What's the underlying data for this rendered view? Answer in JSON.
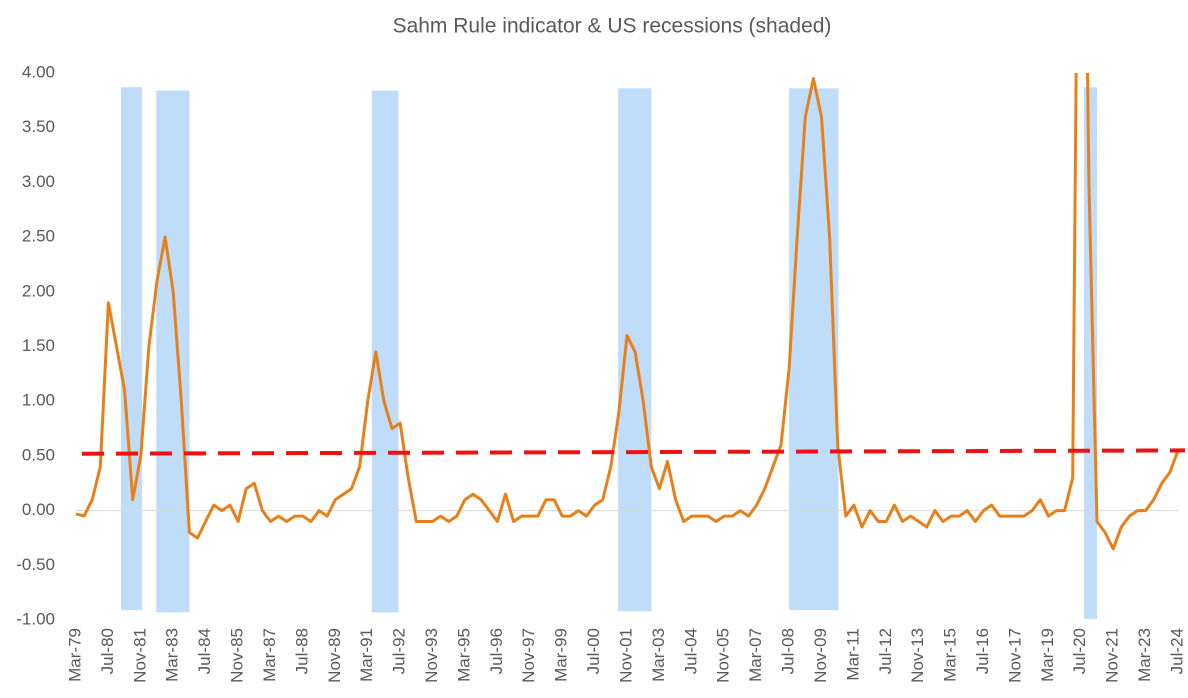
{
  "chart_data": {
    "type": "line",
    "title": "Sahm Rule indicator & US recessions (shaded)",
    "categories": [
      "Mar-79",
      null,
      null,
      null,
      "Jul-80",
      null,
      null,
      null,
      "Nov-81",
      null,
      null,
      null,
      "Mar-83",
      null,
      null,
      null,
      "Jul-84",
      null,
      null,
      null,
      "Nov-85",
      null,
      null,
      null,
      "Mar-87",
      null,
      null,
      null,
      "Jul-88",
      null,
      null,
      null,
      "Nov-89",
      null,
      null,
      null,
      "Mar-91",
      null,
      null,
      null,
      "Jul-92",
      null,
      null,
      null,
      "Nov-93",
      null,
      null,
      null,
      "Mar-95",
      null,
      null,
      null,
      "Jul-96",
      null,
      null,
      null,
      "Nov-97",
      null,
      null,
      null,
      "Mar-99",
      null,
      null,
      null,
      "Jul-00",
      null,
      null,
      null,
      "Nov-01",
      null,
      null,
      null,
      "Mar-03",
      null,
      null,
      null,
      "Jul-04",
      null,
      null,
      null,
      "Nov-05",
      null,
      null,
      null,
      "Mar-07",
      null,
      null,
      null,
      "Jul-08",
      null,
      null,
      null,
      "Nov-09",
      null,
      null,
      null,
      "Mar-11",
      null,
      null,
      null,
      "Jul-12",
      null,
      null,
      null,
      "Nov-13",
      null,
      null,
      null,
      "Mar-15",
      null,
      null,
      null,
      "Jul-16",
      null,
      null,
      null,
      "Nov-17",
      null,
      null,
      null,
      "Mar-19",
      null,
      null,
      null,
      "Jul-20",
      null,
      null,
      null,
      "Nov-21",
      null,
      null,
      null,
      "Mar-23",
      null,
      null,
      null,
      "Jul-24"
    ],
    "series": [
      {
        "name": "Sahm Rule indicator",
        "color": "#e8801a",
        "values": [
          -0.03,
          -0.05,
          0.1,
          0.4,
          1.9,
          1.5,
          1.1,
          0.1,
          0.5,
          1.5,
          2.1,
          2.5,
          2.0,
          1.0,
          -0.2,
          -0.25,
          -0.1,
          0.05,
          0.0,
          0.05,
          -0.1,
          0.2,
          0.25,
          0.0,
          -0.1,
          -0.05,
          -0.1,
          -0.05,
          -0.05,
          -0.1,
          0.0,
          -0.05,
          0.1,
          0.15,
          0.2,
          0.4,
          1.0,
          1.45,
          1.0,
          0.75,
          0.8,
          0.3,
          -0.1,
          -0.1,
          -0.1,
          -0.05,
          -0.1,
          -0.05,
          0.1,
          0.15,
          0.1,
          0.0,
          -0.1,
          0.15,
          -0.1,
          -0.05,
          -0.05,
          -0.05,
          0.1,
          0.1,
          -0.05,
          -0.05,
          0.0,
          -0.05,
          0.05,
          0.1,
          0.4,
          0.9,
          1.6,
          1.45,
          1.0,
          0.4,
          0.2,
          0.45,
          0.1,
          -0.1,
          -0.05,
          -0.05,
          -0.05,
          -0.1,
          -0.05,
          -0.05,
          0.0,
          -0.05,
          0.05,
          0.2,
          0.4,
          0.6,
          1.3,
          2.5,
          3.6,
          3.95,
          3.6,
          2.5,
          0.6,
          -0.05,
          0.05,
          -0.15,
          0.0,
          -0.1,
          -0.1,
          0.05,
          -0.1,
          -0.05,
          -0.1,
          -0.15,
          0.0,
          -0.1,
          -0.05,
          -0.05,
          0.0,
          -0.1,
          0.0,
          0.05,
          -0.05,
          -0.05,
          -0.05,
          -0.05,
          0.0,
          0.1,
          -0.05,
          0.0,
          0.0,
          0.3,
          9.0,
          3.0,
          -0.1,
          -0.2,
          -0.35,
          -0.15,
          -0.05,
          0.0,
          0.0,
          0.1,
          0.25,
          0.35,
          0.55
        ]
      }
    ],
    "threshold": {
      "values": [
        0.52,
        0.55
      ],
      "color": "#ee1111"
    },
    "recessions": {
      "color": "#bfdcf8",
      "spans": [
        {
          "from": 5.55,
          "to": 8.15,
          "top": 3.87,
          "bottom": -0.91
        },
        {
          "from": 9.9,
          "to": 14.0,
          "top": 3.84,
          "bottom": -0.93
        },
        {
          "from": 36.5,
          "to": 39.8,
          "top": 3.84,
          "bottom": -0.93
        },
        {
          "from": 66.9,
          "to": 71.0,
          "top": 3.86,
          "bottom": -0.92
        },
        {
          "from": 88.0,
          "to": 94.1,
          "top": 3.86,
          "bottom": -0.91
        },
        {
          "from": 124.4,
          "to": 126.0,
          "top": 3.87,
          "bottom": -0.99
        }
      ]
    },
    "ylim": [
      -1,
      4
    ],
    "yticks": [
      {
        "value": -1,
        "label": "-1.00"
      },
      {
        "value": -0.5,
        "label": "-0.50"
      },
      {
        "value": 0,
        "label": "0.00"
      },
      {
        "value": 0.5,
        "label": "0.50"
      },
      {
        "value": 1,
        "label": "1.00"
      },
      {
        "value": 1.5,
        "label": "1.50"
      },
      {
        "value": 2,
        "label": "2.00"
      },
      {
        "value": 2.5,
        "label": "2.50"
      },
      {
        "value": 3,
        "label": "3.00"
      },
      {
        "value": 3.5,
        "label": "3.50"
      },
      {
        "value": 4,
        "label": "4.00"
      }
    ],
    "grid": false
  }
}
